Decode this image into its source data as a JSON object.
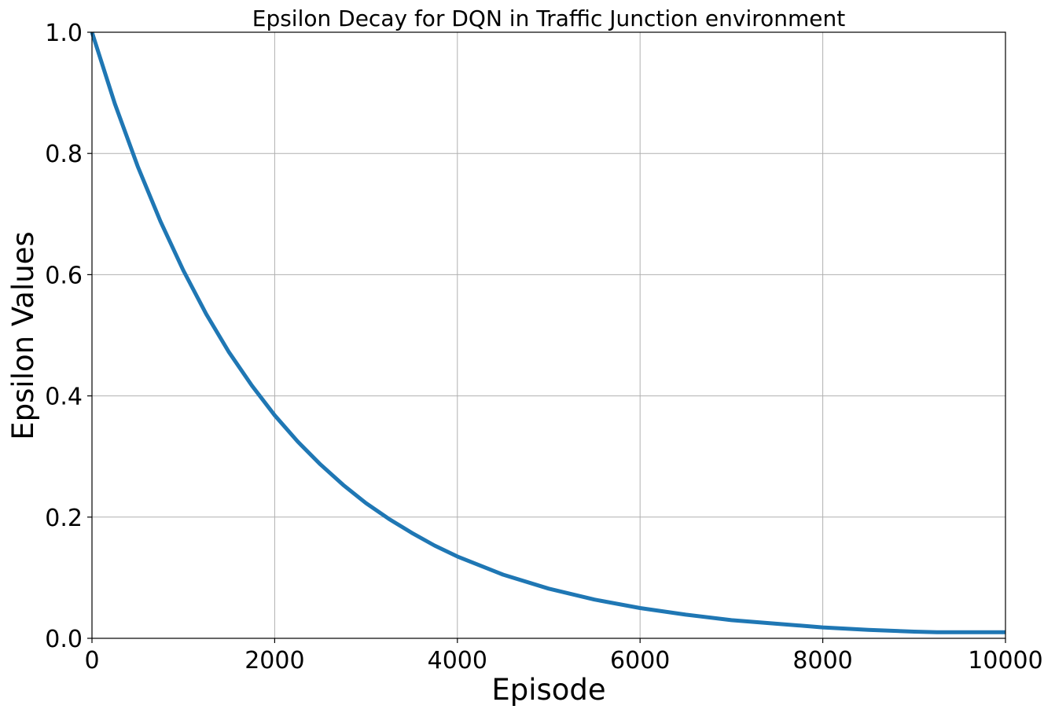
{
  "chart_data": {
    "type": "line",
    "title": "Epsilon Decay for DQN in Traffic Junction environment",
    "xlabel": "Episode",
    "ylabel": "Epsilon Values",
    "xlim": [
      0,
      10000
    ],
    "ylim": [
      0,
      1.0
    ],
    "grid": true,
    "xticks": [
      0,
      2000,
      4000,
      6000,
      8000,
      10000
    ],
    "xtick_labels": [
      "0",
      "2000",
      "4000",
      "6000",
      "8000",
      "10000"
    ],
    "yticks": [
      0,
      0.2,
      0.4,
      0.6,
      0.8,
      1.0
    ],
    "ytick_labels": [
      "0.0",
      "0.2",
      "0.4",
      "0.6",
      "0.8",
      "1.0"
    ],
    "series": [
      {
        "color": "#1f77b4",
        "x": [
          0,
          250,
          500,
          750,
          1000,
          1250,
          1500,
          1750,
          2000,
          2250,
          2500,
          2750,
          3000,
          3250,
          3500,
          3750,
          4000,
          4500,
          5000,
          5500,
          6000,
          6500,
          7000,
          7500,
          8000,
          8500,
          9000,
          9250,
          9500,
          10000
        ],
        "y": [
          1.0,
          0.882,
          0.779,
          0.688,
          0.607,
          0.535,
          0.472,
          0.417,
          0.368,
          0.325,
          0.287,
          0.253,
          0.223,
          0.197,
          0.174,
          0.153,
          0.135,
          0.105,
          0.082,
          0.064,
          0.05,
          0.039,
          0.03,
          0.024,
          0.018,
          0.014,
          0.011,
          0.01,
          0.01,
          0.01
        ]
      }
    ]
  }
}
